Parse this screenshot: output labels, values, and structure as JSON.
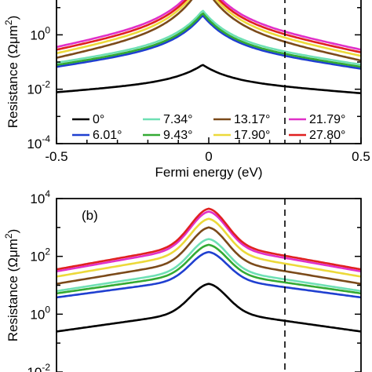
{
  "chart_data": [
    {
      "type": "line",
      "panel": "a",
      "panel_label": "",
      "xlabel": "Fermi energy (eV)",
      "ylabel": "Resistance (Ωμm²)",
      "yscale": "log",
      "xlim": [
        -0.5,
        0.5
      ],
      "ylim_log10": [
        -4,
        1.8
      ],
      "x_ticks": [
        {
          "value": -0.5,
          "label": "-0.5"
        },
        {
          "value": 0,
          "label": "0"
        },
        {
          "value": 0.5,
          "label": "0.5"
        }
      ],
      "y_ticks": [
        {
          "exp": -4,
          "base": "10",
          "sup": "-4"
        },
        {
          "exp": -2,
          "base": "10",
          "sup": "-2"
        },
        {
          "exp": 0,
          "base": "10",
          "sup": "0"
        }
      ],
      "vline_x": 0.25,
      "legend_columns": 4,
      "legend_placement": "lower-center",
      "series": [
        {
          "name": "0°",
          "color": "#000000",
          "peak_log10": -1.1,
          "edge_log10": -2.15,
          "peak_x": -0.02,
          "shape": "cusp"
        },
        {
          "name": "6.01°",
          "color": "#1f3fd0",
          "peak_log10": 0.72,
          "edge_log10": -1.25,
          "peak_x": -0.02,
          "shape": "cusp"
        },
        {
          "name": "7.34°",
          "color": "#6ee0b4",
          "peak_log10": 0.9,
          "edge_log10": -1.1,
          "peak_x": -0.02,
          "shape": "cusp"
        },
        {
          "name": "9.43°",
          "color": "#33aa33",
          "peak_log10": 0.8,
          "edge_log10": -1.18,
          "peak_x": -0.02,
          "shape": "cusp"
        },
        {
          "name": "13.17°",
          "color": "#7b4a1a",
          "peak_log10": 1.9,
          "edge_log10": -0.95,
          "peak_x": -0.02,
          "shape": "cusp"
        },
        {
          "name": "17.90°",
          "color": "#ecd93a",
          "peak_log10": 2.0,
          "edge_log10": -0.78,
          "peak_x": -0.02,
          "shape": "cusp"
        },
        {
          "name": "21.79°",
          "color": "#e030c8",
          "peak_log10": 2.2,
          "edge_log10": -0.55,
          "peak_x": -0.02,
          "shape": "cusp"
        },
        {
          "name": "27.80°",
          "color": "#e02020",
          "peak_log10": 2.1,
          "edge_log10": -0.65,
          "peak_x": -0.02,
          "shape": "cusp"
        }
      ]
    },
    {
      "type": "line",
      "panel": "b",
      "panel_label": "(b)",
      "xlabel": "",
      "ylabel": "Resistance (Ωμm²)",
      "yscale": "log",
      "xlim": [
        -0.5,
        0.5
      ],
      "ylim_log10": [
        -2,
        4
      ],
      "x_ticks": [],
      "y_ticks": [
        {
          "exp": -2,
          "base": "10",
          "sup": "-2"
        },
        {
          "exp": 0,
          "base": "10",
          "sup": "0"
        },
        {
          "exp": 2,
          "base": "10",
          "sup": "2"
        },
        {
          "exp": 4,
          "base": "10",
          "sup": "4"
        }
      ],
      "vline_x": 0.25,
      "series": [
        {
          "name": "0°",
          "color": "#000000",
          "peak_log10": 1.05,
          "edge_log10": -0.6,
          "peak_x": 0.0,
          "shape": "smooth"
        },
        {
          "name": "6.01°",
          "color": "#1f3fd0",
          "peak_log10": 2.15,
          "edge_log10": 0.58,
          "peak_x": 0.0,
          "shape": "smooth"
        },
        {
          "name": "7.34°",
          "color": "#6ee0b4",
          "peak_log10": 2.6,
          "edge_log10": 0.8,
          "peak_x": 0.0,
          "shape": "smooth"
        },
        {
          "name": "9.43°",
          "color": "#33aa33",
          "peak_log10": 2.4,
          "edge_log10": 0.72,
          "peak_x": 0.0,
          "shape": "smooth"
        },
        {
          "name": "13.17°",
          "color": "#7b4a1a",
          "peak_log10": 3.0,
          "edge_log10": 1.05,
          "peak_x": 0.0,
          "shape": "smooth"
        },
        {
          "name": "17.90°",
          "color": "#ecd93a",
          "peak_log10": 3.3,
          "edge_log10": 1.3,
          "peak_x": 0.0,
          "shape": "smooth"
        },
        {
          "name": "21.79°",
          "color": "#e030c8",
          "peak_log10": 3.55,
          "edge_log10": 1.48,
          "peak_x": 0.0,
          "shape": "smooth"
        },
        {
          "name": "27.80°",
          "color": "#e02020",
          "peak_log10": 3.65,
          "edge_log10": 1.55,
          "peak_x": 0.0,
          "shape": "smooth"
        }
      ]
    }
  ]
}
